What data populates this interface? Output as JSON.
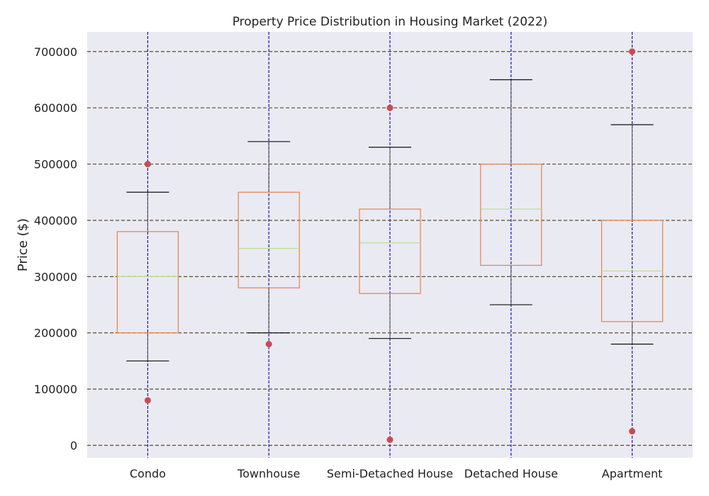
{
  "chart_data": {
    "type": "box",
    "title": "Property Price Distribution in Housing Market (2022)",
    "ylabel": "Price ($)",
    "xlabel": "",
    "ylim": [
      -22000,
      735000
    ],
    "yticks": [
      0,
      100000,
      200000,
      300000,
      400000,
      500000,
      600000,
      700000
    ],
    "grid": true,
    "categories": [
      "Condo",
      "Townhouse",
      "Semi-Detached House",
      "Detached House",
      "Apartment"
    ],
    "boxes": [
      {
        "name": "Condo",
        "whisker_low": 150000,
        "q1": 200000,
        "median": 300000,
        "q3": 380000,
        "whisker_high": 450000,
        "outliers": [
          80000,
          500000
        ]
      },
      {
        "name": "Townhouse",
        "whisker_low": 200000,
        "q1": 280000,
        "median": 350000,
        "q3": 450000,
        "whisker_high": 540000,
        "outliers": [
          180000
        ]
      },
      {
        "name": "Semi-Detached House",
        "whisker_low": 190000,
        "q1": 270000,
        "median": 360000,
        "q3": 420000,
        "whisker_high": 530000,
        "outliers": [
          10000,
          600000
        ]
      },
      {
        "name": "Detached House",
        "whisker_low": 250000,
        "q1": 320000,
        "median": 420000,
        "q3": 500000,
        "whisker_high": 650000,
        "outliers": []
      },
      {
        "name": "Apartment",
        "whisker_low": 180000,
        "q1": 220000,
        "median": 310000,
        "q3": 400000,
        "whisker_high": 570000,
        "outliers": [
          25000,
          700000
        ]
      }
    ],
    "colors": {
      "plot_background": "#eaeaf2",
      "box_edge": "#e8804a",
      "median": "#b8e08a",
      "whisker": "#555555",
      "cap": "#111111",
      "outlier": "#c44e52",
      "horizontal_grid": "#5a4a30",
      "vertical_grid": "#1a14c8"
    }
  }
}
